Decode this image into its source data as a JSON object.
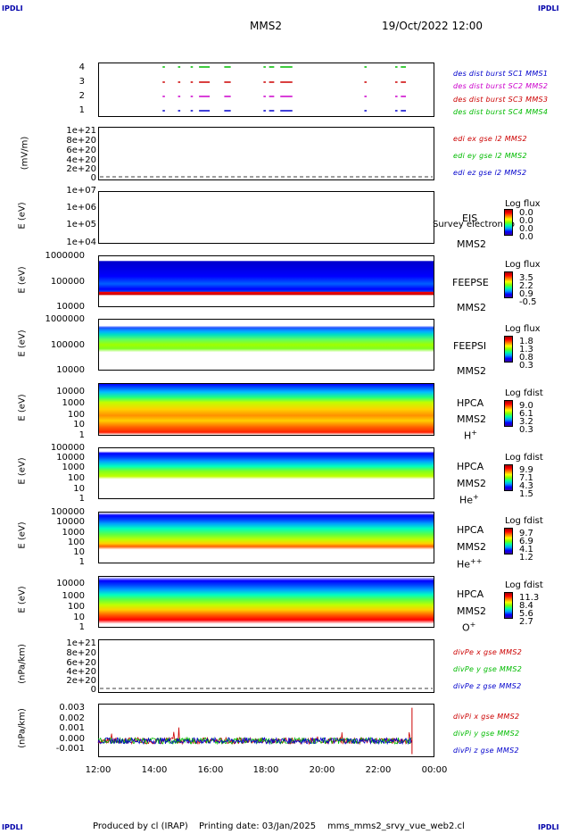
{
  "corner_label": "IPDLI",
  "header": {
    "spacecraft": "MMS2",
    "datetime": "19/Oct/2022 12:00"
  },
  "footer": {
    "produced_by": "Produced by cl (IRAP)",
    "printing_date": "Printing date: 03/Jan/2025",
    "script": "mms_mms2_srvy_vue_web2.cl"
  },
  "chart_data": [
    {
      "type": "line",
      "panel": "burst",
      "yticks": [
        "4",
        "3",
        "2",
        "1"
      ],
      "series": [
        {
          "name": "des dist burst SC1 MMS1",
          "color": "#0000cc",
          "value": 1
        },
        {
          "name": "des dist burst SC2 MMS2",
          "color": "#cc00cc",
          "value": 2
        },
        {
          "name": "des dist burst SC3 MMS3",
          "color": "#cc0000",
          "value": 3
        },
        {
          "name": "des dist burst SC4 MMS4",
          "color": "#00bb00",
          "value": 4
        }
      ],
      "intervals_hours": [
        [
          14.3,
          14.35
        ],
        [
          14.85,
          14.9
        ],
        [
          15.3,
          15.35
        ],
        [
          15.6,
          15.95
        ],
        [
          16.5,
          16.7
        ],
        [
          17.9,
          17.95
        ],
        [
          18.1,
          18.25
        ],
        [
          18.5,
          18.9
        ],
        [
          21.5,
          21.55
        ],
        [
          22.6,
          22.65
        ],
        [
          22.8,
          22.95
        ]
      ]
    },
    {
      "type": "line",
      "panel": "edi_e",
      "ylabel": "(mV/m)",
      "yticks": [
        "1e+21",
        "8e+20",
        "6e+20",
        "4e+20",
        "2e+20",
        "0"
      ],
      "series": [
        {
          "name": "edi ex gse l2 MMS2",
          "color": "#cc0000"
        },
        {
          "name": "edi ey gse l2 MMS2",
          "color": "#00bb00"
        },
        {
          "name": "edi ez gse l2 MMS2",
          "color": "#0000cc"
        }
      ]
    },
    {
      "type": "heatmap",
      "panel": "eis",
      "ylabel": "E (eV)",
      "yticks": [
        "1e+07",
        "1e+06",
        "1e+05",
        "1e+04"
      ],
      "instrument": "EIS",
      "sc": "MMS2",
      "note": "Survey electron to",
      "cbar_title": "Log flux",
      "cbar_values": [
        "0.0",
        "0.0",
        "0.0",
        "0.0"
      ]
    },
    {
      "type": "heatmap",
      "panel": "feeps_e",
      "ylabel": "E (eV)",
      "yticks": [
        "1000000",
        "100000",
        "10000"
      ],
      "instrument": "FEEPSE",
      "sc": "MMS2",
      "cbar_title": "Log flux",
      "cbar_values": [
        "3.5",
        "2.2",
        "0.9",
        "-0.5"
      ]
    },
    {
      "type": "heatmap",
      "panel": "feeps_i",
      "ylabel": "E (eV)",
      "yticks": [
        "1000000",
        "100000",
        "10000"
      ],
      "instrument": "FEEPSI",
      "sc": "MMS2",
      "cbar_title": "Log flux",
      "cbar_values": [
        "1.8",
        "1.3",
        "0.8",
        "0.3"
      ]
    },
    {
      "type": "heatmap",
      "panel": "hpca_h",
      "ylabel": "E (eV)",
      "yticks": [
        "10000",
        "1000",
        "100",
        "10",
        "1"
      ],
      "instrument": "HPCA",
      "sc": "MMS2",
      "species": "H",
      "charge": "+",
      "cbar_title": "Log fdist",
      "cbar_values": [
        "9.0",
        "6.1",
        "3.2",
        "0.3"
      ]
    },
    {
      "type": "heatmap",
      "panel": "hpca_he",
      "ylabel": "E (eV)",
      "yticks": [
        "100000",
        "10000",
        "1000",
        "100",
        "10",
        "1"
      ],
      "instrument": "HPCA",
      "sc": "MMS2",
      "species": "He",
      "charge": "+",
      "cbar_title": "Log fdist",
      "cbar_values": [
        "9.9",
        "7.1",
        "4.3",
        "1.5"
      ]
    },
    {
      "type": "heatmap",
      "panel": "hpca_hepp",
      "ylabel": "E (eV)",
      "yticks": [
        "100000",
        "10000",
        "1000",
        "100",
        "10",
        "1"
      ],
      "instrument": "HPCA",
      "sc": "MMS2",
      "species": "He",
      "charge": "++",
      "cbar_title": "Log fdist",
      "cbar_values": [
        "9.7",
        "6.9",
        "4.1",
        "1.2"
      ]
    },
    {
      "type": "heatmap",
      "panel": "hpca_o",
      "ylabel": "E (eV)",
      "yticks": [
        "10000",
        "1000",
        "100",
        "10",
        "1"
      ],
      "instrument": "HPCA",
      "sc": "MMS2",
      "species": "O",
      "charge": "+",
      "cbar_title": "Log fdist",
      "cbar_values": [
        "11.3",
        "8.4",
        "5.6",
        "2.7"
      ]
    },
    {
      "type": "line",
      "panel": "divpe",
      "ylabel": "(nPa/km)",
      "yticks": [
        "1e+21",
        "8e+20",
        "6e+20",
        "4e+20",
        "2e+20",
        "0"
      ],
      "series": [
        {
          "name": "divPe x gse MMS2",
          "color": "#cc0000"
        },
        {
          "name": "divPe y gse MMS2",
          "color": "#00bb00"
        },
        {
          "name": "divPe z gse MMS2",
          "color": "#0000cc"
        }
      ]
    },
    {
      "type": "line",
      "panel": "divpi",
      "ylabel": "(nPa/km)",
      "yticks": [
        "0.003",
        "0.002",
        "0.001",
        "0.000",
        "-0.001"
      ],
      "ylim": [
        -0.0016,
        0.0036
      ],
      "series": [
        {
          "name": "divPi x gse MMS2",
          "color": "#cc0000"
        },
        {
          "name": "divPi y gse MMS2",
          "color": "#00bb00"
        },
        {
          "name": "divPi z gse MMS2",
          "color": "#0000cc"
        }
      ]
    }
  ],
  "x_axis": {
    "ticks": [
      "12:00",
      "14:00",
      "16:00",
      "18:00",
      "20:00",
      "22:00",
      "00:00"
    ],
    "range_hours": [
      12,
      24
    ]
  }
}
